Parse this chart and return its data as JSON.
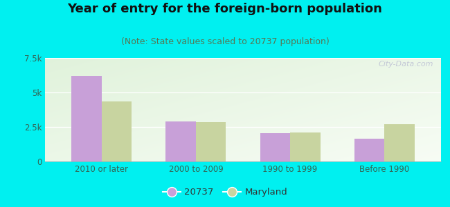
{
  "title": "Year of entry for the foreign-born population",
  "subtitle": "(Note: State values scaled to 20737 population)",
  "categories": [
    "2010 or later",
    "2000 to 2009",
    "1990 to 1999",
    "Before 1990"
  ],
  "values_20737": [
    6200,
    2900,
    2050,
    1650
  ],
  "values_maryland": [
    4350,
    2850,
    2100,
    2700
  ],
  "bar_color_20737": "#c8a0d8",
  "bar_color_maryland": "#c8d4a0",
  "background_outer": "#00f0f0",
  "background_inner_tl": "#e8f4e0",
  "background_inner_br": "#f8fff4",
  "ylim": [
    0,
    7500
  ],
  "yticks": [
    0,
    2500,
    5000,
    7500
  ],
  "ytick_labels": [
    "0",
    "2.5k",
    "5k",
    "7.5k"
  ],
  "legend_label_20737": "20737",
  "legend_label_maryland": "Maryland",
  "title_fontsize": 13,
  "subtitle_fontsize": 9,
  "bar_width": 0.32,
  "watermark": "City-Data.com"
}
